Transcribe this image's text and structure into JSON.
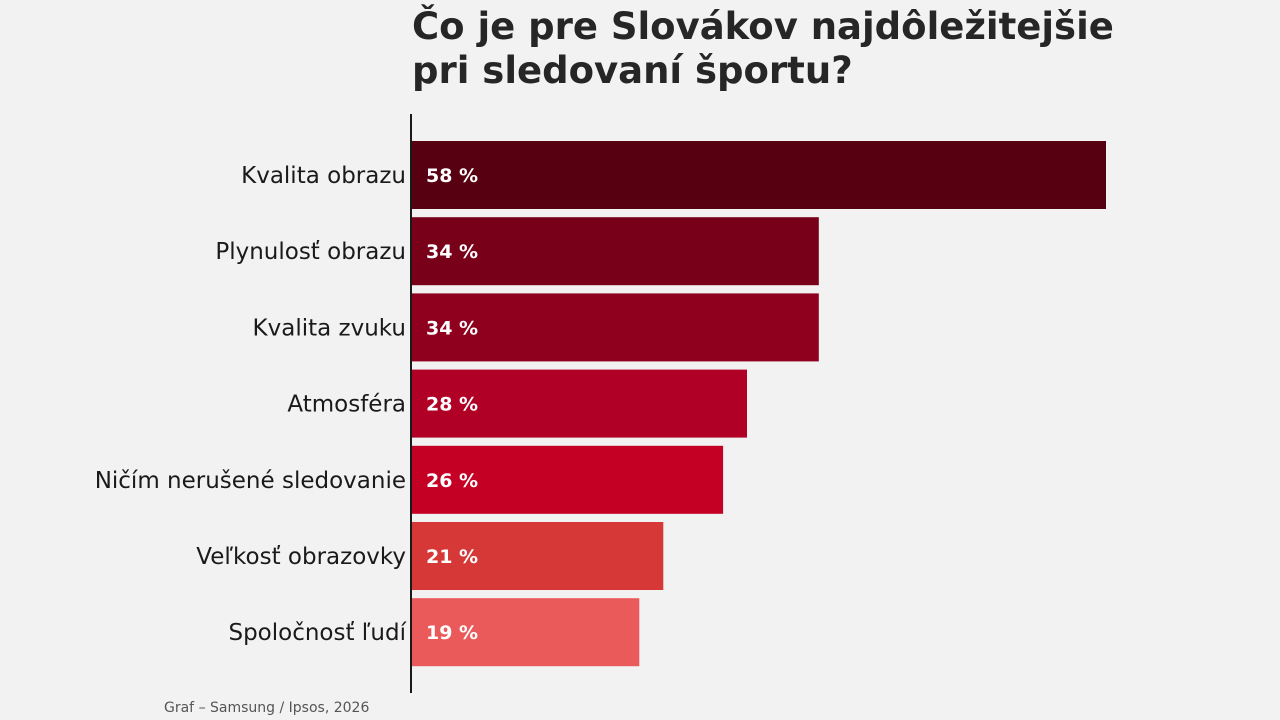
{
  "chart_data": {
    "type": "bar",
    "orientation": "horizontal",
    "title_lines": [
      "Čo je pre Slovákov najdôležitejšie",
      "pri sledovaní športu?"
    ],
    "categories": [
      "Kvalita obrazu",
      "Plynulosť obrazu",
      "Kvalita zvuku",
      "Atmosféra",
      "Ničím nerušené sledovanie",
      "Veľkosť obrazovky",
      "Spoločnosť ľudí"
    ],
    "values": [
      58,
      34,
      34,
      28,
      26,
      21,
      19
    ],
    "value_labels": [
      "58 %",
      "34 %",
      "34 %",
      "28 %",
      "26 %",
      "21 %",
      "19 %"
    ],
    "bar_colors": [
      "#570011",
      "#780019",
      "#8f001f",
      "#b00026",
      "#c40025",
      "#d63838",
      "#eb5a5a"
    ],
    "xlim": [
      0,
      58
    ],
    "grid": false,
    "source": "Graf – Samsung / Ipsos, 2026"
  }
}
